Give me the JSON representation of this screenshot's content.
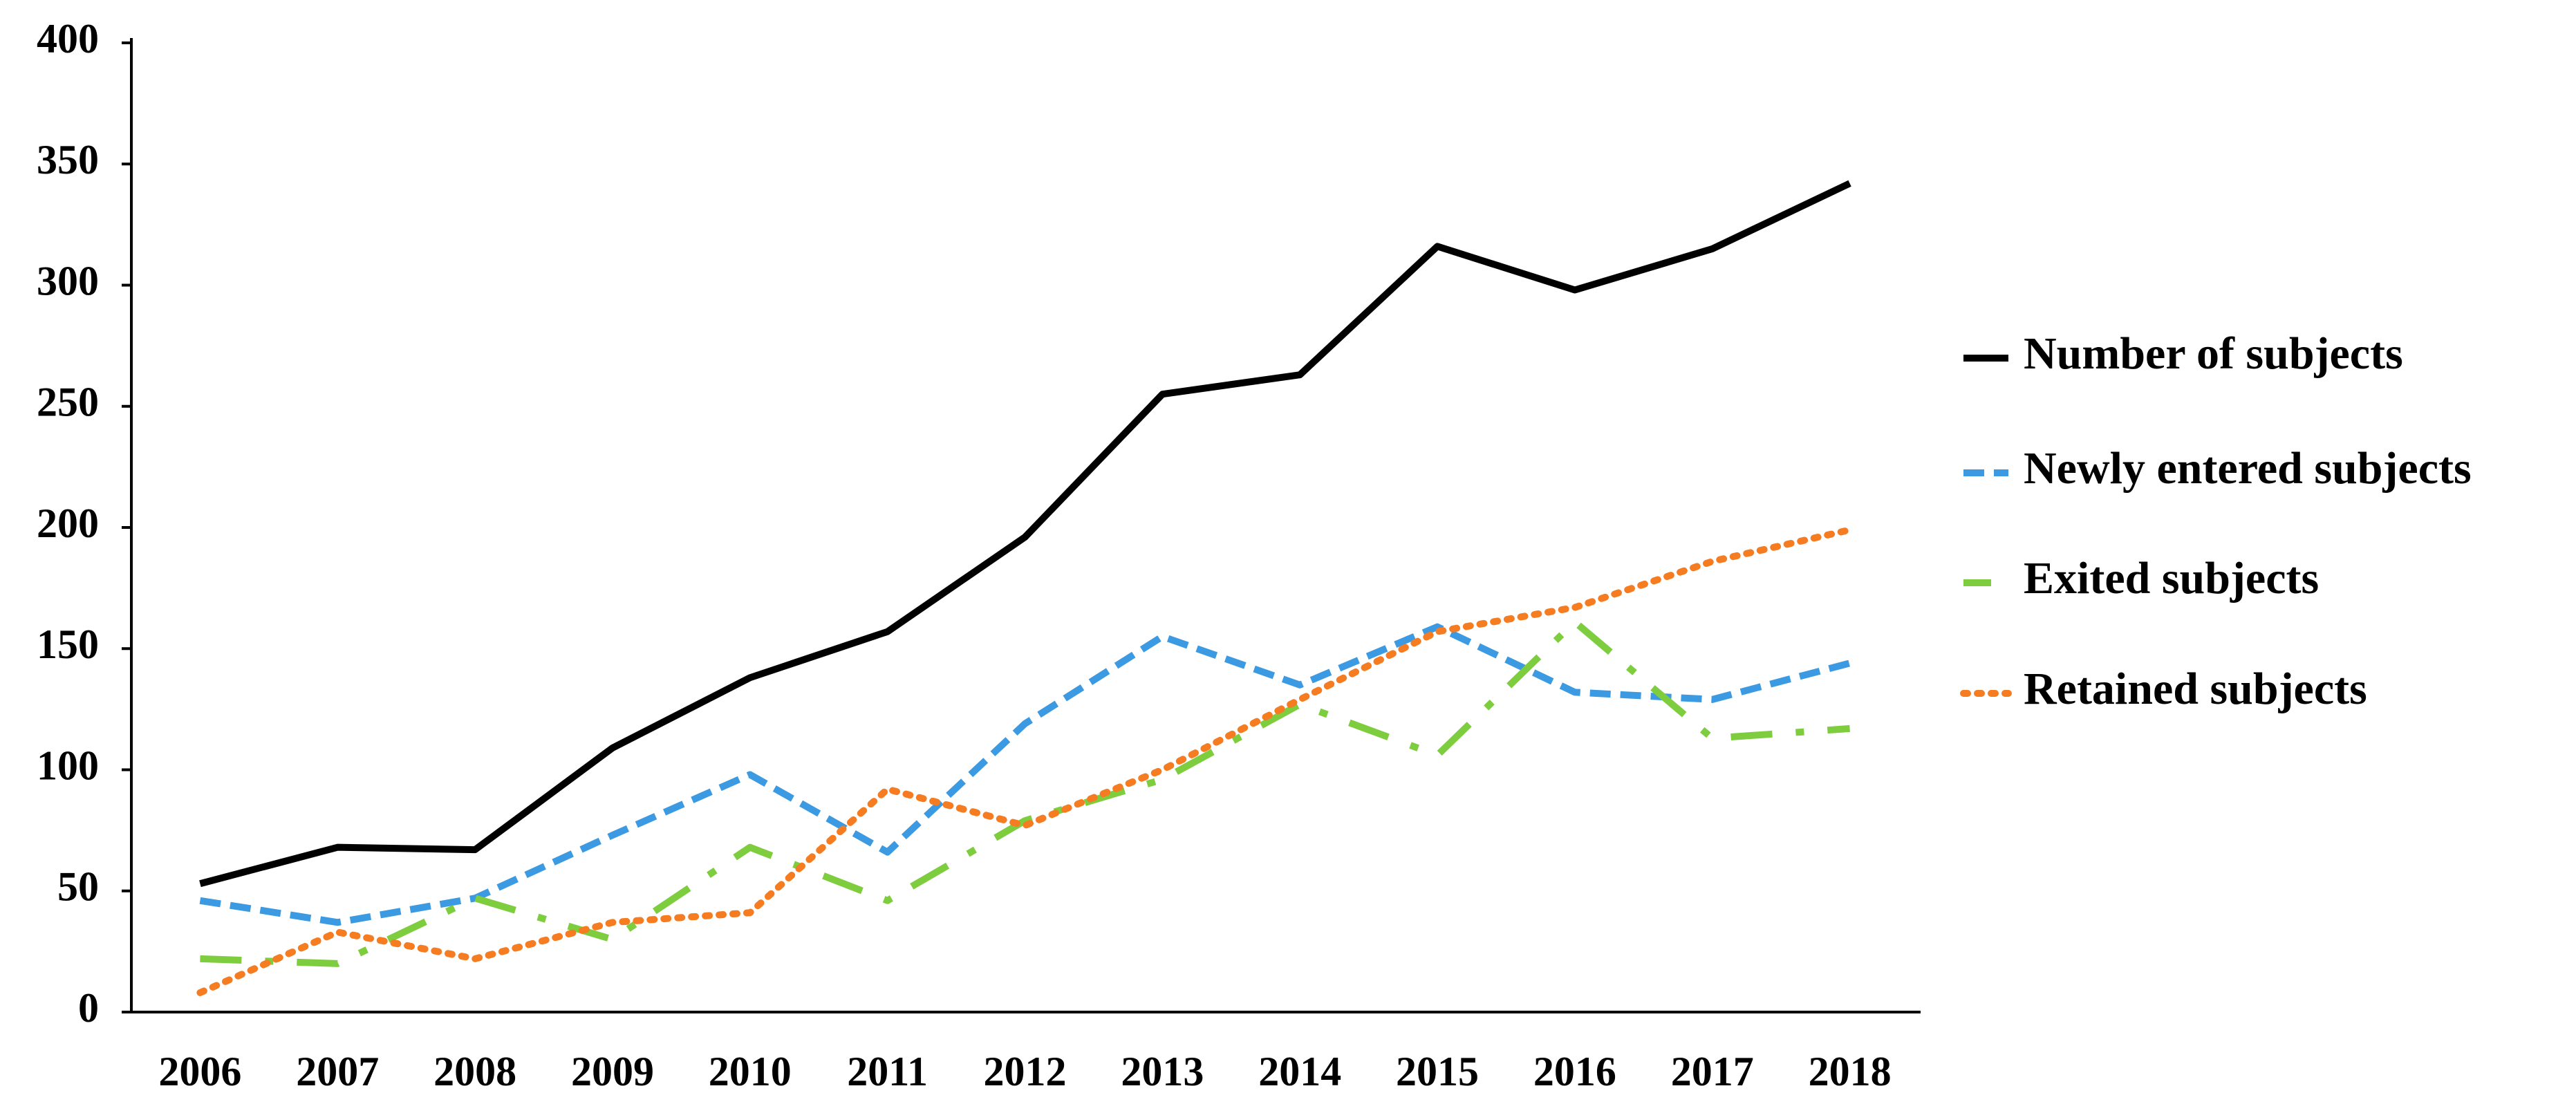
{
  "chart_data": {
    "type": "line",
    "categories": [
      "2006",
      "2007",
      "2008",
      "2009",
      "2010",
      "2011",
      "2012",
      "2013",
      "2014",
      "2015",
      "2016",
      "2017",
      "2018"
    ],
    "series": [
      {
        "name": "Number of subjects",
        "color": "#000000",
        "line_style": "solid",
        "values": [
          53,
          68,
          67,
          109,
          138,
          157,
          196,
          255,
          263,
          316,
          298,
          315,
          342
        ]
      },
      {
        "name": "Newly entered subjects",
        "color": "#3b9ae1",
        "line_style": "dashed",
        "values": [
          46,
          37,
          47,
          73,
          98,
          66,
          119,
          155,
          135,
          159,
          132,
          129,
          144
        ]
      },
      {
        "name": "Exited subjects",
        "color": "#7dcd3f",
        "line_style": "dashdot",
        "values": [
          22,
          20,
          47,
          30,
          68,
          46,
          79,
          96,
          127,
          106,
          161,
          113,
          117
        ]
      },
      {
        "name": "Retained subjects",
        "color": "#f57c20",
        "line_style": "dotted",
        "values": [
          8,
          33,
          22,
          37,
          41,
          92,
          77,
          100,
          129,
          157,
          167,
          186,
          199
        ]
      }
    ],
    "ylim": [
      0,
      400
    ],
    "yticks": [
      0,
      50,
      100,
      150,
      200,
      250,
      300,
      350,
      400
    ],
    "grid": false,
    "legend": "right"
  }
}
